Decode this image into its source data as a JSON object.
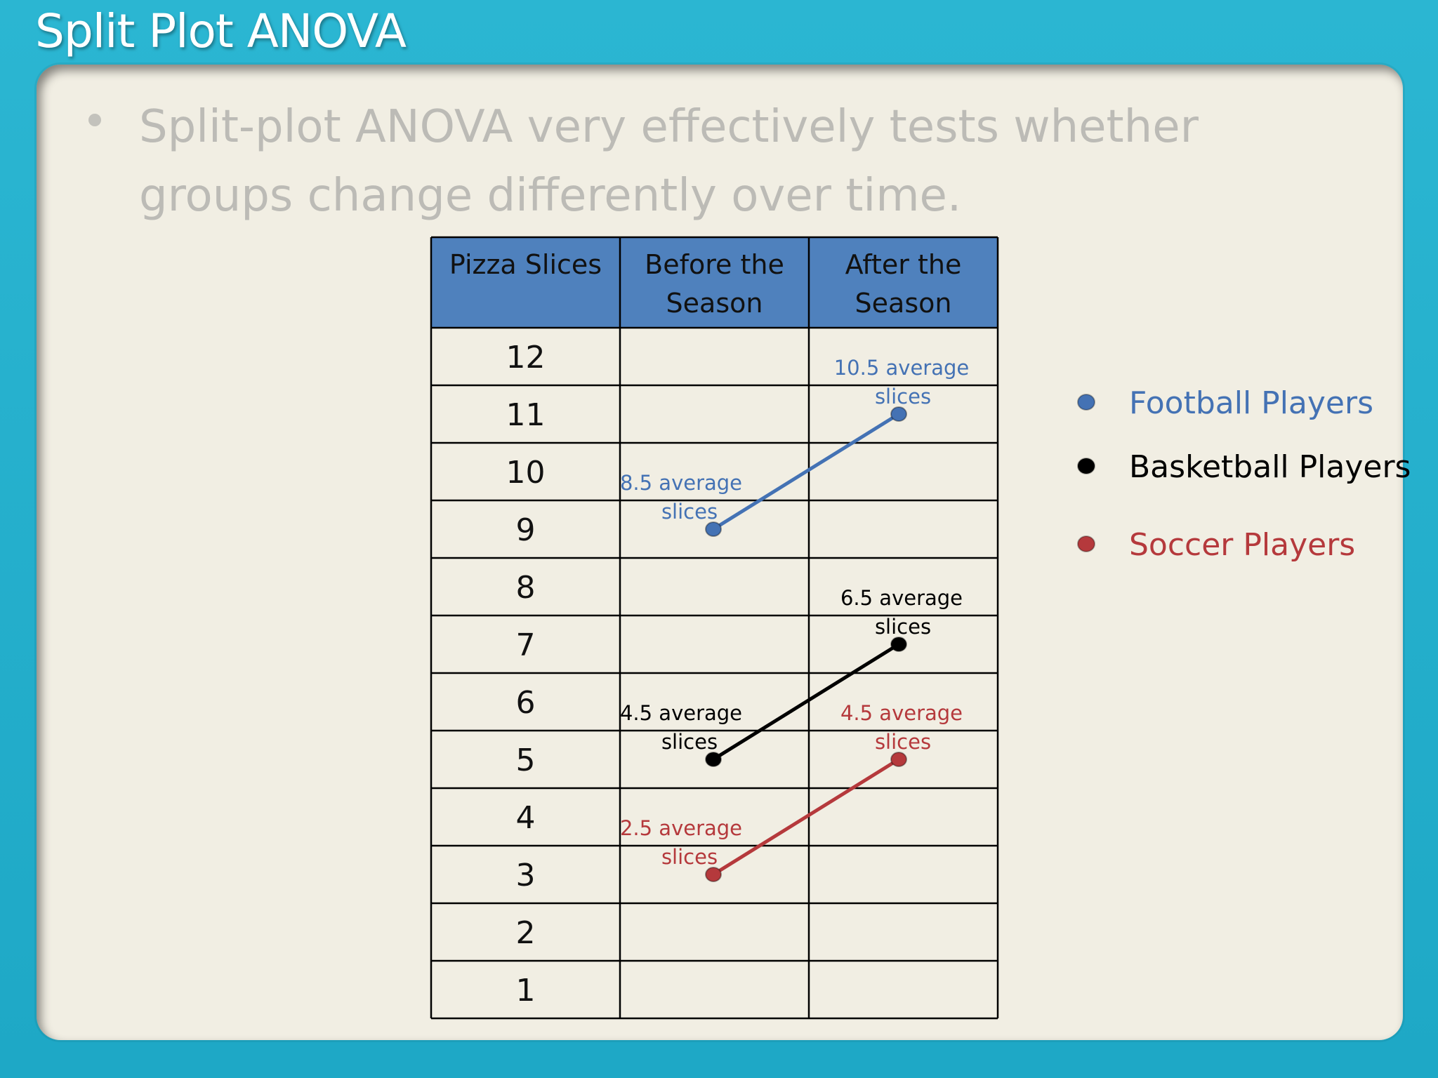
{
  "slide": {
    "title": "Split Plot ANOVA",
    "bullet_line1": "Split-plot ANOVA very effectively tests whether",
    "bullet_line2": "groups change differently over time."
  },
  "chart_data": {
    "type": "line",
    "x_header": "Pizza Slices",
    "categories": [
      [
        "Before the",
        "Season"
      ],
      [
        "After the",
        "Season"
      ]
    ],
    "rows": [
      12,
      11,
      10,
      9,
      8,
      7,
      6,
      5,
      4,
      3,
      2,
      1
    ],
    "ylim": [
      1,
      12
    ],
    "series": [
      {
        "name": "Football Players",
        "color": "#4472b4",
        "values": [
          9,
          11
        ],
        "labels": [
          [
            "8.5 average",
            "slices"
          ],
          [
            "10.5 average",
            "slices"
          ]
        ]
      },
      {
        "name": "Basketball Players",
        "color": "#000000",
        "values": [
          5,
          7
        ],
        "labels": [
          [
            "4.5 average",
            "slices"
          ],
          [
            "6.5 average",
            "slices"
          ]
        ]
      },
      {
        "name": "Soccer Players",
        "color": "#b5393c",
        "values": [
          3,
          5
        ],
        "labels": [
          [
            "2.5 average",
            "slices"
          ],
          [
            "4.5 average",
            "slices"
          ]
        ]
      }
    ],
    "colors": {
      "header_fill": "#4f81bd",
      "grid": "#000000"
    }
  }
}
